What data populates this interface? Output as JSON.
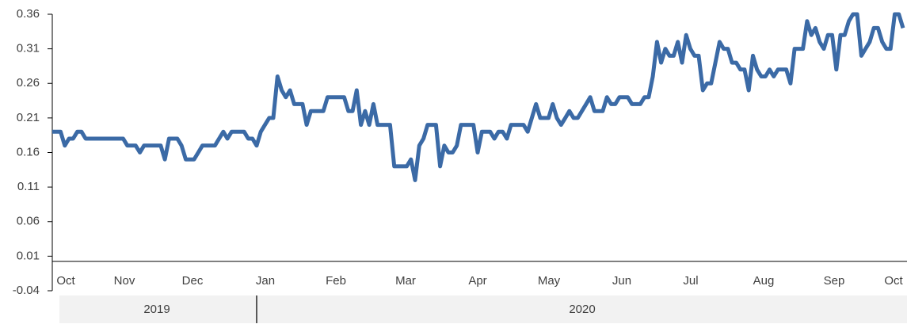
{
  "chart_data": {
    "type": "line",
    "ylim": [
      -0.04,
      0.36
    ],
    "yticks": [
      -0.04,
      0.01,
      0.06,
      0.11,
      0.16,
      0.21,
      0.26,
      0.31,
      0.36
    ],
    "month_labels": [
      "Oct",
      "Nov",
      "Dec",
      "Jan",
      "Feb",
      "Mar",
      "Apr",
      "May",
      "Jun",
      "Jul",
      "Aug",
      "Sep",
      "Oct"
    ],
    "year_labels": [
      "2019",
      "2020"
    ],
    "grid": false,
    "series": [
      {
        "name": null,
        "color": "#3b6aa6",
        "values": [
          0.19,
          0.19,
          0.19,
          0.17,
          0.18,
          0.18,
          0.19,
          0.19,
          0.18,
          0.18,
          0.18,
          0.18,
          0.18,
          0.18,
          0.18,
          0.18,
          0.18,
          0.18,
          0.17,
          0.17,
          0.17,
          0.16,
          0.17,
          0.17,
          0.17,
          0.17,
          0.17,
          0.15,
          0.18,
          0.18,
          0.18,
          0.17,
          0.15,
          0.15,
          0.15,
          0.16,
          0.17,
          0.17,
          0.17,
          0.17,
          0.18,
          0.19,
          0.18,
          0.19,
          0.19,
          0.19,
          0.19,
          0.18,
          0.18,
          0.17,
          0.19,
          0.2,
          0.21,
          0.21,
          0.27,
          0.25,
          0.24,
          0.25,
          0.23,
          0.23,
          0.23,
          0.2,
          0.22,
          0.22,
          0.22,
          0.22,
          0.24,
          0.24,
          0.24,
          0.24,
          0.24,
          0.22,
          0.22,
          0.25,
          0.2,
          0.22,
          0.2,
          0.23,
          0.2,
          0.2,
          0.2,
          0.2,
          0.14,
          0.14,
          0.14,
          0.14,
          0.15,
          0.12,
          0.17,
          0.18,
          0.2,
          0.2,
          0.2,
          0.14,
          0.17,
          0.16,
          0.16,
          0.17,
          0.2,
          0.2,
          0.2,
          0.2,
          0.16,
          0.19,
          0.19,
          0.19,
          0.18,
          0.19,
          0.19,
          0.18,
          0.2,
          0.2,
          0.2,
          0.2,
          0.19,
          0.21,
          0.23,
          0.21,
          0.21,
          0.21,
          0.23,
          0.21,
          0.2,
          0.21,
          0.22,
          0.21,
          0.21,
          0.22,
          0.23,
          0.24,
          0.22,
          0.22,
          0.22,
          0.24,
          0.23,
          0.23,
          0.24,
          0.24,
          0.24,
          0.23,
          0.23,
          0.23,
          0.24,
          0.24,
          0.27,
          0.32,
          0.29,
          0.31,
          0.3,
          0.3,
          0.32,
          0.29,
          0.33,
          0.31,
          0.3,
          0.3,
          0.25,
          0.26,
          0.26,
          0.29,
          0.32,
          0.31,
          0.31,
          0.29,
          0.29,
          0.28,
          0.28,
          0.25,
          0.3,
          0.28,
          0.27,
          0.27,
          0.28,
          0.27,
          0.28,
          0.28,
          0.28,
          0.26,
          0.31,
          0.31,
          0.31,
          0.35,
          0.33,
          0.34,
          0.32,
          0.31,
          0.33,
          0.33,
          0.28,
          0.33,
          0.33,
          0.35,
          0.36,
          0.36,
          0.3,
          0.31,
          0.32,
          0.34,
          0.34,
          0.32,
          0.31,
          0.31,
          0.36,
          0.36,
          0.34
        ]
      }
    ]
  }
}
